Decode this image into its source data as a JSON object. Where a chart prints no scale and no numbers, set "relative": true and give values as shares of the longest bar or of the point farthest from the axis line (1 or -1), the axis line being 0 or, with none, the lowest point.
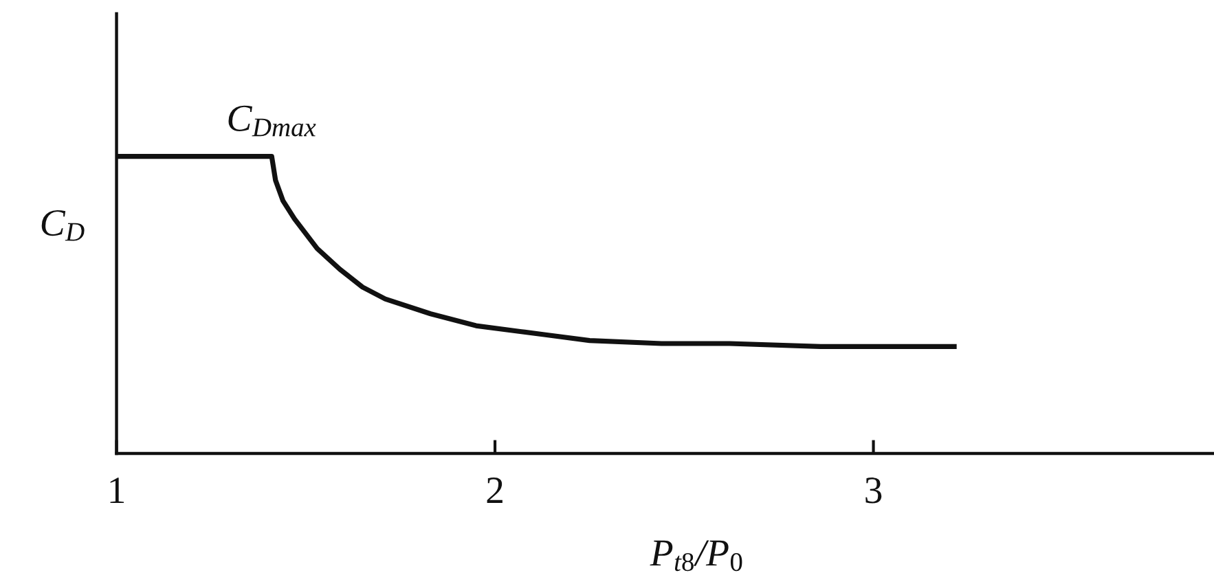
{
  "chart_data": {
    "type": "line",
    "relative": true,
    "color": "#111111",
    "x": [
      1.0,
      1.41,
      1.42,
      1.44,
      1.47,
      1.53,
      1.59,
      1.65,
      1.71,
      1.83,
      1.95,
      2.07,
      2.13,
      2.25,
      2.44,
      2.62,
      2.86,
      3.1,
      3.22
    ],
    "values": [
      1,
      1,
      0.92,
      0.85,
      0.79,
      0.69,
      0.62,
      0.56,
      0.52,
      0.47,
      0.43,
      0.41,
      0.4,
      0.38,
      0.37,
      0.37,
      0.36,
      0.36,
      0.36
    ],
    "xlim": [
      1,
      3.9
    ],
    "xticks": [
      1,
      2,
      3
    ],
    "xlabel": "P$_{t8}$/P$_{0}$",
    "ylabel": "C$_{D}$",
    "annotations": [
      {
        "text": "C$_{Dmax}$",
        "x": 1.41,
        "y": 1
      }
    ]
  }
}
